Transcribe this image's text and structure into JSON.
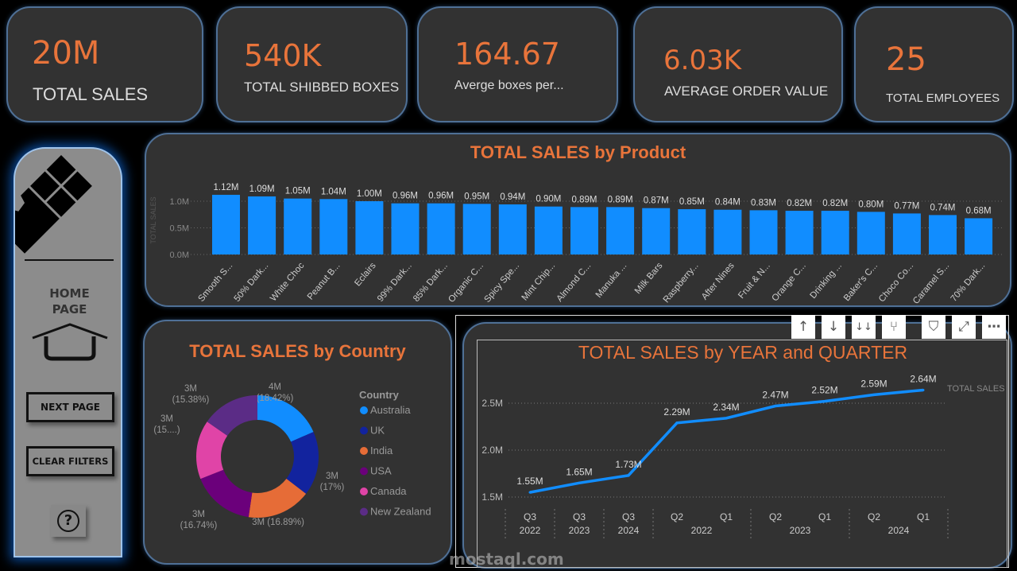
{
  "kpis": [
    {
      "value": "20M",
      "label": "TOTAL SALES"
    },
    {
      "value": "540K",
      "label": "TOTAL SHIBBED BOXES"
    },
    {
      "value": "164.67",
      "label": "Averge boxes per..."
    },
    {
      "value": "6.03K",
      "label": "AVERAGE ORDER VALUE"
    },
    {
      "value": "25",
      "label": "TOTAL EMPLOYEES"
    }
  ],
  "sidebar": {
    "home_label_1": "HOME",
    "home_label_2": "PAGE",
    "next_page": "NEXT PAGE",
    "clear_filters": "CLEAR FILTERS",
    "help": "?"
  },
  "toolbar": {
    "icons": [
      "sort-up-icon",
      "sort-down-icon",
      "expand-all-icon",
      "drill-down-icon",
      "filter-icon",
      "focus-mode-icon",
      "more-options-icon"
    ]
  },
  "watermark": {
    "text": "mostaql.com"
  },
  "chart_data": [
    {
      "type": "bar",
      "title": "TOTAL SALES by Product",
      "ylabel": "TOTAL SALES",
      "ylim": [
        0,
        1.2
      ],
      "yticks": [
        "0.0M",
        "0.5M",
        "1.0M"
      ],
      "color": "#118dff",
      "grid": true,
      "categories": [
        "Smooth S...",
        "50% Dark...",
        "White Choc",
        "Peanut B...",
        "Eclairs",
        "99% Dark...",
        "85% Dark...",
        "Organic C...",
        "Spicy Spe...",
        "Mint Chip...",
        "Almond C...",
        "Manuka ...",
        "Milk Bars",
        "Raspberry...",
        "After Nines",
        "Fruit & N...",
        "Orange C...",
        "Drinking ...",
        "Baker's C...",
        "Choco Co...",
        "Caramel S...",
        "70% Dark..."
      ],
      "values": [
        1.12,
        1.09,
        1.05,
        1.04,
        1.0,
        0.96,
        0.96,
        0.95,
        0.94,
        0.9,
        0.89,
        0.89,
        0.87,
        0.85,
        0.84,
        0.83,
        0.82,
        0.82,
        0.8,
        0.77,
        0.74,
        0.68
      ],
      "labels": [
        "1.12M",
        "1.09M",
        "1.05M",
        "1.04M",
        "1.00M",
        "0.96M",
        "0.96M",
        "0.95M",
        "0.94M",
        "0.90M",
        "0.89M",
        "0.89M",
        "0.87M",
        "0.85M",
        "0.84M",
        "0.83M",
        "0.82M",
        "0.82M",
        "0.80M",
        "0.77M",
        "0.74M",
        "0.68M"
      ]
    },
    {
      "type": "pie",
      "title": "TOTAL SALES by Country",
      "legend_title": "Country",
      "legend": "right",
      "donut": true,
      "slices": [
        {
          "name": "Australia",
          "percent": 18.42,
          "label": "4M",
          "pct_label": "(18.42%)",
          "color": "#118dff"
        },
        {
          "name": "UK",
          "percent": 17,
          "label": "3M",
          "pct_label": "(17%)",
          "color": "#12239e"
        },
        {
          "name": "India",
          "percent": 16.89,
          "label": "3M (16.89%)",
          "pct_label": "",
          "color": "#e66c37"
        },
        {
          "name": "USA",
          "percent": 16.74,
          "label": "3M",
          "pct_label": "(16.74%)",
          "color": "#6b007b"
        },
        {
          "name": "Canada",
          "percent": 15.57,
          "label": "3M",
          "pct_label": "(15....)",
          "color": "#e044a7"
        },
        {
          "name": "New Zealand",
          "percent": 15.38,
          "label": "3M",
          "pct_label": "(15.38%)",
          "color": "#5b2c86"
        }
      ]
    },
    {
      "type": "line",
      "title": "TOTAL SALES by YEAR and QUARTER",
      "legend": "TOTAL SALES",
      "color": "#118dff",
      "ylim": [
        1.5,
        2.7
      ],
      "yticks": [
        "1.5M",
        "2.0M",
        "2.5M"
      ],
      "grid": true,
      "x": [
        {
          "q": "Q3",
          "y": "2022"
        },
        {
          "q": "Q3",
          "y": "2023"
        },
        {
          "q": "Q3",
          "y": "2024"
        },
        {
          "q": "Q2",
          "y": ""
        },
        {
          "q": "Q1",
          "y": ""
        },
        {
          "q": "Q2",
          "y": ""
        },
        {
          "q": "Q1",
          "y": ""
        },
        {
          "q": "Q2",
          "y": ""
        },
        {
          "q": "Q1",
          "y": ""
        }
      ],
      "group_labels": [
        "2022",
        "2023",
        "2024"
      ],
      "values": [
        1.55,
        1.65,
        1.73,
        2.29,
        2.34,
        2.47,
        2.52,
        2.59,
        2.64
      ],
      "labels": [
        "1.55M",
        "1.65M",
        "1.73M",
        "2.29M",
        "2.34M",
        "2.47M",
        "2.52M",
        "2.59M",
        "2.64M"
      ]
    }
  ]
}
